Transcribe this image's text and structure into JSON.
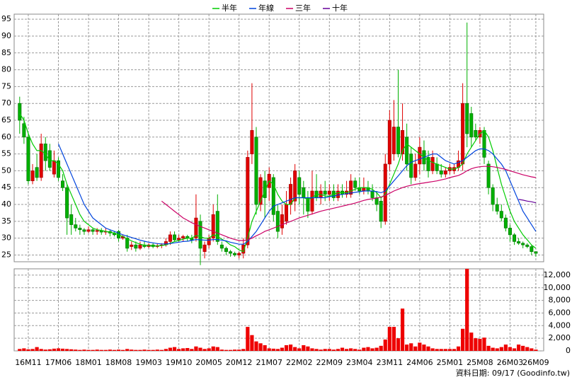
{
  "chart_data": {
    "type": "candlestick",
    "categories": [
      null,
      null,
      "16M11",
      null,
      null,
      null,
      null,
      null,
      null,
      "17M06",
      null,
      null,
      null,
      null,
      null,
      null,
      "18M01",
      null,
      null,
      null,
      null,
      null,
      null,
      "18M08",
      null,
      null,
      null,
      null,
      null,
      null,
      "19M03",
      null,
      null,
      null,
      null,
      null,
      null,
      "19M10",
      null,
      null,
      null,
      null,
      null,
      null,
      "20M05",
      null,
      null,
      null,
      null,
      null,
      null,
      "20M12",
      null,
      null,
      null,
      null,
      null,
      null,
      "21M07",
      null,
      null,
      null,
      null,
      null,
      null,
      "22M02",
      null,
      null,
      null,
      null,
      null,
      null,
      "22M09",
      null,
      null,
      null,
      null,
      null,
      null,
      "23M04",
      null,
      null,
      null,
      null,
      null,
      null,
      "23M11",
      null,
      null,
      null,
      null,
      null,
      null,
      "24M06",
      null,
      null,
      null,
      null,
      null,
      null,
      "25M01",
      null,
      null,
      null,
      null,
      null,
      null,
      "25M08",
      null,
      null,
      null,
      null,
      null,
      null,
      "26M03",
      null,
      null,
      null,
      null,
      null,
      "26M09"
    ],
    "open": [
      70,
      64,
      60,
      47,
      51,
      48,
      58,
      56,
      49,
      53,
      47,
      45,
      37,
      34,
      33,
      32.5,
      32,
      32.5,
      32,
      32.3,
      31.8,
      32,
      31.5,
      32,
      30,
      30,
      27.5,
      28,
      27,
      28,
      27.5,
      28,
      27.5,
      27.8,
      28,
      29,
      31,
      29.5,
      30,
      30.5,
      30,
      30,
      35,
      26,
      28,
      30,
      38,
      28,
      27,
      26,
      25.5,
      25,
      25.5,
      28,
      55,
      60,
      40,
      47,
      45,
      48,
      38,
      33,
      35,
      40,
      41,
      48,
      45,
      42,
      38,
      44,
      42,
      44,
      43,
      44,
      42,
      44,
      43,
      43,
      47,
      45,
      44,
      45,
      44,
      42,
      41,
      35,
      52,
      55,
      63,
      55,
      60,
      55,
      48,
      52,
      56,
      54,
      50,
      52,
      50,
      49,
      50,
      50,
      51,
      52,
      70,
      67,
      62,
      60,
      62,
      52,
      45,
      40,
      38,
      36,
      33,
      31,
      29,
      28.5,
      28,
      27.5,
      26
    ],
    "high": [
      72,
      66,
      61,
      52,
      55,
      61,
      60,
      58,
      56,
      54,
      49,
      46,
      40,
      36,
      34,
      33,
      33.5,
      33,
      33,
      33,
      33,
      32.5,
      32,
      32.5,
      31,
      31,
      29,
      29,
      29,
      29,
      28.5,
      28.5,
      28.5,
      28.5,
      30,
      32,
      32,
      31,
      31,
      31,
      31,
      43,
      37,
      29,
      31,
      40,
      43,
      29,
      27.5,
      26.5,
      26,
      26,
      30,
      56,
      76,
      63,
      49,
      50,
      51,
      49,
      40,
      40,
      44,
      48,
      52,
      50,
      47,
      44,
      50,
      49,
      46,
      47,
      46,
      46,
      46,
      46,
      47,
      49,
      48,
      48,
      48,
      47,
      46,
      44,
      42,
      55,
      68,
      71,
      80,
      70,
      64,
      57,
      55,
      60,
      59,
      56,
      56,
      54,
      52,
      51,
      52,
      52,
      56,
      76,
      94,
      69,
      64,
      63,
      63,
      53,
      46,
      42,
      40,
      37,
      34,
      31.5,
      30,
      29,
      28.5,
      28,
      26
    ],
    "low": [
      61,
      58,
      46,
      46,
      47,
      47,
      50,
      50,
      48,
      47,
      44,
      31,
      31,
      32,
      31,
      31,
      31.5,
      31,
      31,
      31,
      31,
      30.5,
      30.5,
      29,
      29.5,
      26,
      26.5,
      26,
      26.5,
      27,
      27,
      27,
      27,
      27,
      27.5,
      28,
      29,
      29,
      29,
      29,
      28.5,
      29,
      22,
      24,
      27,
      29,
      28,
      26,
      25,
      24.5,
      24.5,
      24,
      24,
      27,
      52,
      37,
      38,
      36,
      41,
      35,
      30,
      31,
      34,
      37,
      38,
      40,
      37,
      36,
      37,
      41,
      40,
      41,
      41,
      41,
      41,
      42,
      42,
      42,
      44,
      43,
      43,
      43,
      41,
      38,
      33,
      34,
      50,
      53,
      54,
      53,
      50,
      46,
      47,
      49,
      50,
      48,
      49,
      49,
      48,
      48,
      49,
      49,
      50,
      50,
      57,
      57,
      59,
      58,
      52,
      43,
      38,
      37,
      35,
      32,
      29,
      28,
      28,
      27,
      27,
      25,
      24.5
    ],
    "close": [
      65,
      60,
      47,
      50,
      48,
      58,
      53,
      51,
      53,
      48,
      45,
      36,
      34,
      33,
      32.5,
      32,
      32.5,
      32,
      32.3,
      31.8,
      32,
      31.5,
      31,
      30,
      30.5,
      27,
      28,
      27,
      28,
      27.5,
      28,
      27.5,
      27.8,
      28,
      29,
      31,
      29.5,
      30,
      30.5,
      30,
      29.5,
      36,
      27,
      28,
      30,
      37,
      29,
      27,
      26,
      25.5,
      25,
      25.5,
      28,
      54,
      62,
      40,
      48,
      42,
      49,
      37,
      32,
      37,
      40,
      46,
      50,
      43,
      42,
      38,
      44,
      42,
      44,
      43,
      44,
      42,
      44,
      43,
      44,
      47,
      45,
      44,
      45,
      44,
      42,
      40,
      35,
      52,
      65,
      63,
      55,
      62,
      52,
      48,
      52,
      57,
      52,
      50,
      54,
      50,
      49,
      50,
      51,
      51,
      53,
      70,
      61,
      60,
      60,
      62,
      54,
      45,
      40,
      38,
      36,
      33,
      31,
      29,
      28.5,
      28,
      27.5,
      26,
      25.5
    ],
    "volume": [
      300,
      400,
      250,
      300,
      600,
      300,
      200,
      250,
      350,
      400,
      350,
      300,
      250,
      200,
      150,
      200,
      150,
      150,
      200,
      150,
      150,
      200,
      150,
      200,
      150,
      300,
      200,
      150,
      150,
      200,
      150,
      150,
      200,
      150,
      300,
      500,
      600,
      300,
      400,
      450,
      300,
      700,
      500,
      300,
      400,
      700,
      600,
      200,
      150,
      150,
      200,
      200,
      300,
      3800,
      2500,
      1500,
      1200,
      900,
      400,
      350,
      300,
      500,
      900,
      1000,
      600,
      400,
      900,
      700,
      400,
      300,
      200,
      300,
      300,
      200,
      300,
      500,
      300,
      400,
      300,
      200,
      500,
      600,
      400,
      500,
      800,
      1800,
      3800,
      3800,
      2000,
      6700,
      1000,
      1200,
      700,
      1300,
      1000,
      700,
      400,
      300,
      300,
      300,
      300,
      300,
      700,
      3500,
      13000,
      2900,
      2000,
      1900,
      2100,
      800,
      500,
      400,
      600,
      1000,
      600,
      400,
      1000,
      800,
      600,
      400,
      200
    ],
    "up_color": "#e00000",
    "down_color": "#00b000",
    "volume_color": "#ee0000",
    "series": [
      {
        "name": "半年",
        "color": "#00cc00",
        "values": [
          67,
          65,
          61,
          58,
          56,
          56,
          55,
          53,
          53,
          52,
          50,
          46,
          43,
          40,
          37,
          35,
          34,
          33,
          32.5,
          32.3,
          32,
          31.8,
          31.5,
          31,
          30.5,
          29.8,
          29.2,
          28.7,
          28.2,
          27.9,
          27.8,
          27.7,
          27.7,
          27.8,
          28,
          28.5,
          29,
          29.3,
          29.7,
          30,
          30,
          30.8,
          30.5,
          30,
          30,
          31,
          30.5,
          29.7,
          29,
          28,
          27.5,
          26.5,
          26,
          30,
          35,
          38,
          41,
          44,
          47,
          46,
          43,
          41,
          40,
          40,
          42,
          42,
          42,
          41.5,
          42,
          43,
          43,
          42.5,
          42.5,
          43,
          43.5,
          43.5,
          43.5,
          44,
          44.5,
          45,
          45,
          45,
          44.5,
          43.5,
          42,
          43,
          46,
          49,
          52,
          56,
          58,
          57,
          56,
          55,
          54,
          53,
          52.5,
          52,
          51.5,
          51,
          50.5,
          50.5,
          51,
          52,
          55,
          57,
          59,
          61,
          62,
          60,
          56,
          51,
          46,
          42,
          38,
          35,
          33,
          31,
          29.5,
          28,
          27
        ]
      },
      {
        "name": "年線",
        "color": "#0044dd",
        "values": [
          null,
          null,
          null,
          null,
          null,
          null,
          null,
          null,
          null,
          58,
          55,
          52,
          49,
          46,
          43,
          40,
          38,
          36,
          35,
          34,
          33,
          32.5,
          32,
          31.5,
          31,
          30.6,
          30.2,
          29.8,
          29.4,
          29.1,
          28.8,
          28.6,
          28.4,
          28.3,
          28.3,
          28.4,
          28.6,
          28.8,
          29,
          29.1,
          29.3,
          29.6,
          29.5,
          29.4,
          29.4,
          29.6,
          29.6,
          29.4,
          29.2,
          28.8,
          28.5,
          28.2,
          28.2,
          29,
          30.5,
          32,
          34,
          36,
          38,
          39.5,
          40,
          40.5,
          41,
          41.5,
          42,
          42,
          42,
          42,
          42,
          42,
          42,
          42,
          42.3,
          42.5,
          42.8,
          43,
          43.2,
          43.4,
          43.6,
          43.8,
          44,
          44,
          44,
          43.8,
          43.5,
          44,
          45.5,
          47,
          48.5,
          50,
          51.5,
          52.5,
          53,
          53.5,
          54,
          54.5,
          55,
          55,
          54,
          53,
          52.5,
          52,
          52.5,
          53,
          54,
          55,
          56,
          56.5,
          56.5,
          56,
          55,
          53.5,
          52,
          50,
          47,
          44,
          41,
          38,
          36,
          34,
          32
        ]
      },
      {
        "name": "三年",
        "color": "#cc0066",
        "values": [
          null,
          null,
          null,
          null,
          null,
          null,
          null,
          null,
          null,
          null,
          null,
          null,
          null,
          null,
          null,
          null,
          null,
          null,
          null,
          null,
          null,
          null,
          null,
          null,
          null,
          null,
          null,
          null,
          null,
          null,
          null,
          null,
          null,
          41,
          40,
          39,
          38,
          37,
          36,
          35.3,
          34.6,
          34,
          33.5,
          33,
          32.5,
          32,
          31.5,
          31,
          30.5,
          30,
          29.6,
          29.3,
          29.3,
          29.5,
          30,
          30.7,
          31.3,
          32,
          32.5,
          33,
          33.5,
          34,
          34.5,
          35,
          35.5,
          36,
          36.4,
          36.8,
          37.2,
          37.6,
          38,
          38.3,
          38.6,
          38.9,
          39.2,
          39.5,
          39.8,
          40.1,
          40.4,
          40.8,
          41.2,
          41.5,
          41.7,
          41.9,
          42.2,
          42.7,
          43.3,
          44,
          44.5,
          45,
          45.4,
          45.7,
          46,
          46.2,
          46.4,
          46.6,
          46.8,
          47,
          47.3,
          47.6,
          48,
          48.3,
          48.6,
          49.2,
          50,
          50.6,
          51,
          51.2,
          51.3,
          51.3,
          51.2,
          51,
          50.7,
          50.4,
          50,
          49.6,
          49.2,
          48.8,
          48.5,
          48.2,
          48
        ]
      },
      {
        "name": "十年",
        "color": "#660099",
        "values": [
          null,
          null,
          null,
          null,
          null,
          null,
          null,
          null,
          null,
          null,
          null,
          null,
          null,
          null,
          null,
          null,
          null,
          null,
          null,
          null,
          null,
          null,
          null,
          null,
          null,
          null,
          null,
          null,
          null,
          null,
          null,
          null,
          null,
          null,
          null,
          null,
          null,
          null,
          null,
          null,
          null,
          null,
          null,
          null,
          null,
          null,
          null,
          null,
          null,
          null,
          null,
          null,
          null,
          null,
          null,
          null,
          null,
          null,
          null,
          null,
          null,
          null,
          null,
          null,
          null,
          null,
          null,
          null,
          null,
          null,
          null,
          null,
          null,
          null,
          null,
          null,
          null,
          null,
          null,
          null,
          null,
          null,
          null,
          null,
          null,
          null,
          null,
          null,
          null,
          null,
          null,
          null,
          null,
          null,
          null,
          null,
          null,
          null,
          null,
          null,
          null,
          null,
          null,
          null,
          null,
          null,
          null,
          null,
          null,
          null,
          null,
          null,
          null,
          null,
          null,
          null,
          41.5,
          41.3,
          41,
          40.8,
          40.5
        ]
      }
    ],
    "ylim": [
      23,
      96.5
    ],
    "yticks": [
      25,
      30,
      35,
      40,
      45,
      50,
      55,
      60,
      65,
      70,
      75,
      80,
      85,
      90,
      95
    ],
    "volume_ylim": [
      0,
      13000
    ],
    "volume_yticks": [
      0,
      {
        "value": 2000,
        "label": "2,000"
      },
      {
        "value": 4000,
        "label": "4,000"
      },
      {
        "value": 6000,
        "label": "6,000"
      },
      {
        "value": 8000,
        "label": "8,000"
      },
      {
        "value": 10000,
        "label": "10,000"
      },
      {
        "value": 12000,
        "label": "12,000"
      }
    ],
    "grid": true,
    "legend": "top",
    "source": "資料日期: 09/17 (Goodinfo.tw)"
  }
}
